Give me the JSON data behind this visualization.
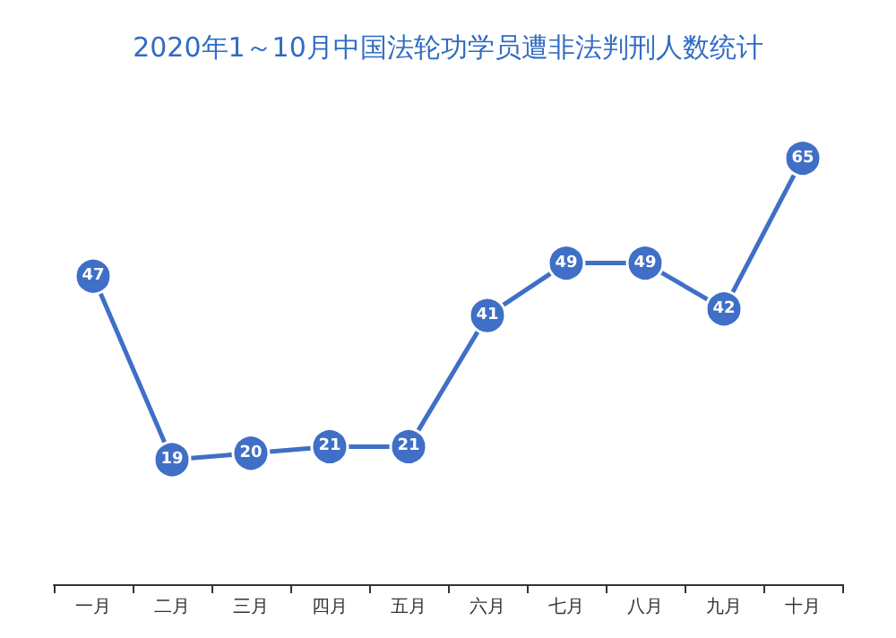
{
  "chart_data": {
    "type": "line",
    "title": "2020年1～10月中国法轮功学员遭非法判刑人数统计",
    "categories": [
      "一月",
      "二月",
      "三月",
      "四月",
      "五月",
      "六月",
      "七月",
      "八月",
      "九月",
      "十月"
    ],
    "series": [
      {
        "color": "#3f6fc6",
        "values": [
          47,
          19,
          20,
          21,
          21,
          41,
          49,
          49,
          42,
          65
        ]
      }
    ],
    "data_labels": true,
    "marker": "circle",
    "line_style": "solid"
  }
}
